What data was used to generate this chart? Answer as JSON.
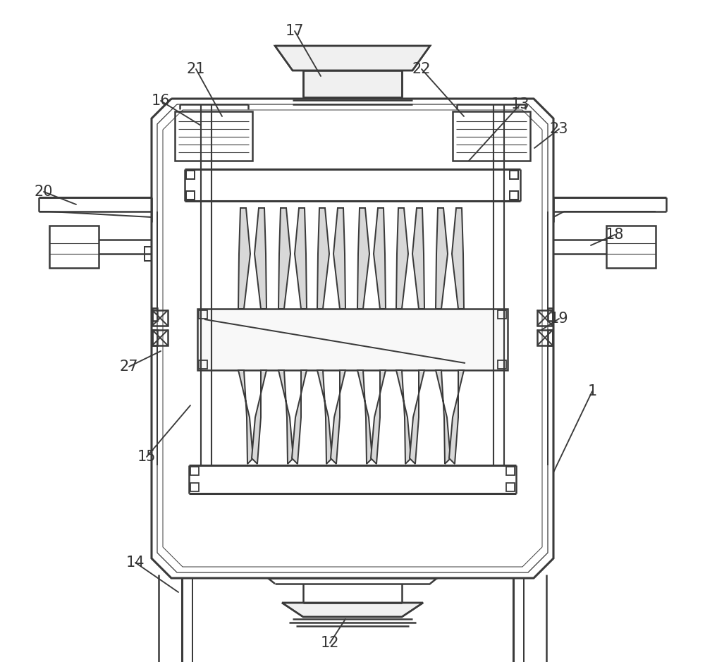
{
  "bg_color": "#ffffff",
  "line_color": "#3a3a3a",
  "lw_main": 1.8,
  "lw_thick": 2.2,
  "lw_thin": 1.0,
  "label_fontsize": 15,
  "labels_data": [
    [
      1,
      840,
      555,
      785,
      670
    ],
    [
      12,
      468,
      912,
      490,
      878
    ],
    [
      13,
      738,
      148,
      665,
      228
    ],
    [
      14,
      192,
      798,
      253,
      840
    ],
    [
      15,
      208,
      648,
      270,
      575
    ],
    [
      16,
      228,
      143,
      285,
      178
    ],
    [
      17,
      418,
      44,
      455,
      108
    ],
    [
      18,
      872,
      333,
      838,
      348
    ],
    [
      19,
      793,
      452,
      768,
      468
    ],
    [
      20,
      62,
      272,
      108,
      290
    ],
    [
      21,
      278,
      98,
      315,
      165
    ],
    [
      22,
      598,
      98,
      658,
      165
    ],
    [
      23,
      793,
      183,
      758,
      210
    ],
    [
      27,
      183,
      520,
      228,
      498
    ]
  ]
}
